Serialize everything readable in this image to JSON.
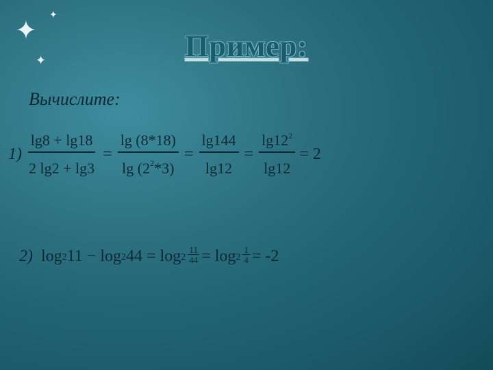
{
  "decorations": {
    "star": "✦"
  },
  "title": "Пример:",
  "subtitle": "Вычислите:",
  "equation1": {
    "label": "1)",
    "frac1": {
      "top": "lg8 + lg18",
      "bot": "2 lg2 + lg3"
    },
    "eq": "=",
    "frac2": {
      "top": "lg (8*18)",
      "bot_a": "lg (2",
      "bot_sup": "2",
      "bot_b": "*3)"
    },
    "frac3": {
      "top": "lg144",
      "bot": "lg12"
    },
    "frac4": {
      "top_a": "lg12",
      "top_sup": "2",
      "bot": "lg12"
    },
    "result": "= 2"
  },
  "equation2": {
    "label": "2)",
    "t1": "log",
    "s2": "2",
    "t2": "11 − log",
    "t3": "44 = log",
    "sf1": {
      "t": "11",
      "b": "44"
    },
    "t4": "= log",
    "sf2": {
      "t": "1",
      "b": "4"
    },
    "t5": "= -2"
  }
}
